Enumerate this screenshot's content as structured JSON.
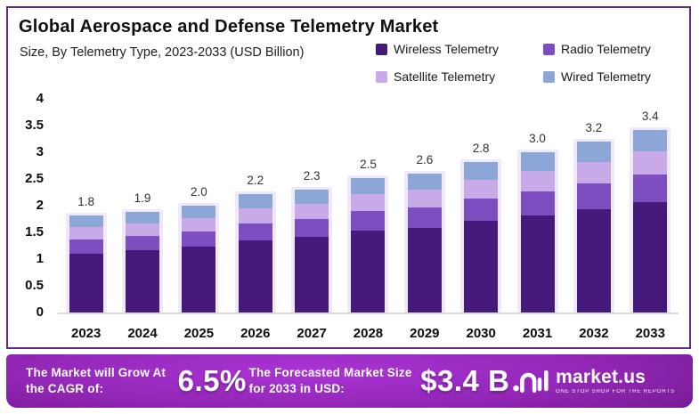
{
  "header": {
    "title": "Global Aerospace and Defense Telemetry Market",
    "subtitle": "Size, By Telemetry Type, 2023-2033 (USD Billion)"
  },
  "colors": {
    "wireless": "#44197a",
    "radio": "#7d4ec0",
    "satellite": "#c9aae8",
    "wired": "#8da6d8",
    "box_border": "#5e2c80",
    "banner_center": "#a42dd0",
    "banner_edge": "#470e5e",
    "bar_halo": "#f0e9fa"
  },
  "chart_data": {
    "type": "bar",
    "stacked": true,
    "title": "Global Aerospace and Defense Telemetry Market",
    "subtitle": "Size, By Telemetry Type, 2023-2033 (USD Billion)",
    "xlabel": "",
    "ylabel": "USD Billion",
    "ylim": [
      0,
      4
    ],
    "yticks": [
      "4",
      "3.5",
      "3",
      "2.5",
      "2",
      "1.5",
      "1",
      "0.5",
      "0"
    ],
    "grid": false,
    "legend_position": "top-right",
    "categories": [
      "2023",
      "2024",
      "2025",
      "2026",
      "2027",
      "2028",
      "2029",
      "2030",
      "2031",
      "2032",
      "2033"
    ],
    "series": [
      {
        "name": "Wireless Telemetry",
        "color": "#44197a",
        "values": [
          1.1,
          1.17,
          1.23,
          1.35,
          1.41,
          1.53,
          1.59,
          1.71,
          1.82,
          1.94,
          2.06
        ]
      },
      {
        "name": "Radio Telemetry",
        "color": "#7d4ec0",
        "values": [
          0.26,
          0.27,
          0.29,
          0.31,
          0.33,
          0.36,
          0.38,
          0.41,
          0.45,
          0.48,
          0.51
        ]
      },
      {
        "name": "Satellite Telemetry",
        "color": "#c9aae8",
        "values": [
          0.23,
          0.24,
          0.25,
          0.28,
          0.29,
          0.31,
          0.33,
          0.35,
          0.38,
          0.4,
          0.43
        ]
      },
      {
        "name": "Wired Telemetry",
        "color": "#8da6d8",
        "values": [
          0.21,
          0.22,
          0.23,
          0.26,
          0.27,
          0.3,
          0.3,
          0.33,
          0.35,
          0.38,
          0.4
        ]
      }
    ],
    "totals": [
      1.8,
      1.9,
      2.0,
      2.2,
      2.3,
      2.5,
      2.6,
      2.8,
      3.0,
      3.2,
      3.4
    ],
    "total_labels": [
      "1.8",
      "1.9",
      "2.0",
      "2.2",
      "2.3",
      "2.5",
      "2.6",
      "2.8",
      "3.0",
      "3.2",
      "3.4"
    ]
  },
  "legend": [
    {
      "label": "Wireless Telemetry",
      "color": "#44197a"
    },
    {
      "label": "Radio Telemetry",
      "color": "#7d4ec0"
    },
    {
      "label": "Satellite Telemetry",
      "color": "#c9aae8"
    },
    {
      "label": "Wired Telemetry",
      "color": "#8da6d8"
    }
  ],
  "banner": {
    "cagr_label": "The Market will Grow At the CAGR of:",
    "cagr_value": "6.5%",
    "forecast_label": "The Forecasted Market Size for 2033 in USD:",
    "forecast_value": "$3.4 B",
    "logo_text": "market.us",
    "logo_tagline": "ONE STOP SHOP FOR THE REPORTS"
  }
}
